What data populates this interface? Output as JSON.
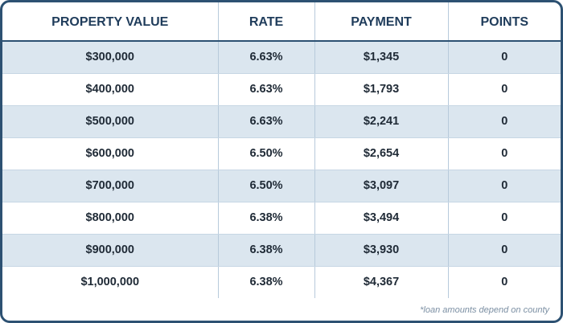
{
  "table": {
    "headers": [
      "PROPERTY VALUE",
      "RATE",
      "PAYMENT",
      "POINTS"
    ],
    "rows": [
      [
        "$300,000",
        "6.63%",
        "$1,345",
        "0"
      ],
      [
        "$400,000",
        "6.63%",
        "$1,793",
        "0"
      ],
      [
        "$500,000",
        "6.63%",
        "$2,241",
        "0"
      ],
      [
        "$600,000",
        "6.50%",
        "$2,654",
        "0"
      ],
      [
        "$700,000",
        "6.50%",
        "$3,097",
        "0"
      ],
      [
        "$800,000",
        "6.38%",
        "$3,494",
        "0"
      ],
      [
        "$900,000",
        "6.38%",
        "$3,930",
        "0"
      ],
      [
        "$1,000,000",
        "6.38%",
        "$4,367",
        "0"
      ]
    ]
  },
  "footnote": "*loan amounts depend on county",
  "colors": {
    "border": "#2d5172",
    "header_text": "#1f3c5b",
    "shaded_row": "#dbe6ef",
    "divider": "#b7cadb"
  }
}
